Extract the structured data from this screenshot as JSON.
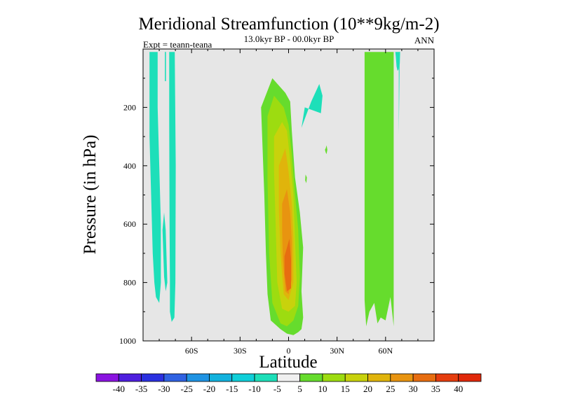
{
  "chart_data": {
    "type": "heatmap",
    "title": "Meridional Streamfunction (10**9kg/m-2)",
    "subtitle": "13.0kyr BP - 00.0kyr BP",
    "left_string": "Expt = teann-teana",
    "right_string": "ANN",
    "xlabel": "Latitude",
    "ylabel": "Pressure (in hPa)",
    "xlim": [
      -90,
      90
    ],
    "ylim": [
      1000,
      0
    ],
    "xticks": [
      {
        "value": -60,
        "label": "60S"
      },
      {
        "value": -30,
        "label": "30S"
      },
      {
        "value": 0,
        "label": "0"
      },
      {
        "value": 30,
        "label": "30N"
      },
      {
        "value": 60,
        "label": "60N"
      }
    ],
    "yticks": [
      {
        "value": 200,
        "label": "200"
      },
      {
        "value": 400,
        "label": "400"
      },
      {
        "value": 600,
        "label": "600"
      },
      {
        "value": 800,
        "label": "800"
      },
      {
        "value": 1000,
        "label": "1000"
      }
    ],
    "background_color": "#e6e6e6",
    "colorbar": {
      "levels": [
        -40,
        -35,
        -30,
        -25,
        -20,
        -15,
        -10,
        -5,
        5,
        10,
        15,
        20,
        25,
        30,
        35,
        40
      ],
      "colors": [
        "#8a13e0",
        "#4e1fde",
        "#2a30e0",
        "#2f62e2",
        "#1f93e3",
        "#12b2de",
        "#0fcfd9",
        "#1ddfb9",
        "#f0f0f0",
        "#66dc2d",
        "#9ddc10",
        "#c8d20c",
        "#e0b40c",
        "#e89410",
        "#e76d10",
        "#e53d0e",
        "#e0280a"
      ]
    },
    "regions": [
      {
        "name": "sh-polar-cell-a",
        "value": -10,
        "lat": [
          -86,
          -86,
          -85,
          -84,
          -83,
          -82,
          -80,
          -79,
          -79,
          -80,
          -81,
          -81
        ],
        "p": [
          10,
          300,
          500,
          700,
          800,
          850,
          870,
          800,
          600,
          400,
          200,
          10
        ]
      },
      {
        "name": "sh-polar-filament",
        "value": -10,
        "lat": [
          -76.5,
          -75.8,
          -75.8,
          -76.5
        ],
        "p": [
          10,
          10,
          110,
          110
        ]
      },
      {
        "name": "sh-polar-cell-b",
        "value": -10,
        "lat": [
          -78,
          -77,
          -76,
          -75,
          -76,
          -77
        ],
        "p": [
          620,
          560,
          620,
          800,
          830,
          780
        ]
      },
      {
        "name": "sh-polar-cell-c",
        "value": -10,
        "lat": [
          -73.8,
          -73.8,
          -73.6,
          -73.4,
          -73.4,
          -72.3,
          -70.6,
          -70.0,
          -69.8,
          -70.4
        ],
        "p": [
          10,
          250,
          600,
          800,
          900,
          935,
          920,
          800,
          400,
          10
        ]
      },
      {
        "name": "nh-mid-cell",
        "value": 5,
        "lat": [
          47,
          50,
          52,
          54,
          55,
          56,
          57,
          58,
          60,
          61,
          63,
          65,
          65,
          63,
          60,
          57,
          55,
          53,
          50,
          48,
          47
        ],
        "p": [
          10,
          10,
          10,
          10,
          10,
          10,
          10,
          10,
          10,
          10,
          10,
          10,
          950,
          850,
          930,
          920,
          940,
          870,
          900,
          950,
          860
        ]
      },
      {
        "name": "nh-high-cell",
        "value": -10,
        "lat": [
          66,
          69,
          68.8,
          68,
          67.4,
          66.8,
          66.3
        ],
        "p": [
          10,
          10,
          50,
          70,
          75,
          60,
          25
        ]
      },
      {
        "name": "nh-high-filament",
        "value": -10,
        "lat": [
          68.2,
          68.8,
          68.2
        ],
        "p": [
          10,
          10,
          290
        ]
      },
      {
        "name": "upper-sh-blob",
        "value": -10,
        "lat": [
          8,
          14,
          19,
          21,
          20,
          10,
          8
        ],
        "p": [
          270,
          180,
          120,
          160,
          220,
          200,
          270
        ]
      },
      {
        "name": "upper-nh-blob",
        "value": 5,
        "lat": [
          23,
          23.5,
          24,
          23.5,
          23,
          22.5
        ],
        "p": [
          340,
          330,
          345,
          360,
          355,
          345
        ]
      },
      {
        "name": "upper-nh-dot",
        "value": 5,
        "lat": [
          10.5,
          11.3,
          11,
          10.3
        ],
        "p": [
          430,
          440,
          460,
          450
        ]
      },
      {
        "name": "hadley-anomaly-5",
        "value": 5,
        "lat": [
          -17,
          -10,
          -2,
          1,
          2,
          4,
          7,
          9,
          8,
          9,
          8,
          6,
          3,
          -1,
          -5,
          -11,
          -13,
          -14,
          -15,
          -16,
          -17
        ],
        "p": [
          200,
          100,
          150,
          180,
          280,
          440,
          560,
          680,
          830,
          920,
          960,
          970,
          980,
          975,
          960,
          930,
          840,
          700,
          500,
          350,
          200
        ]
      },
      {
        "name": "hadley-anomaly-10",
        "value": 10,
        "lat": [
          -13,
          -9,
          -3,
          0,
          2,
          4,
          6,
          7,
          6,
          3,
          -1,
          -5,
          -10,
          -12,
          -13
        ],
        "p": [
          230,
          160,
          200,
          260,
          360,
          500,
          620,
          780,
          880,
          930,
          950,
          940,
          870,
          700,
          450
        ]
      },
      {
        "name": "hadley-anomaly-15",
        "value": 15,
        "lat": [
          -9,
          -4,
          -1,
          1,
          3,
          4,
          5,
          4,
          0,
          -4,
          -7,
          -8,
          -9
        ],
        "p": [
          300,
          250,
          280,
          380,
          500,
          650,
          800,
          880,
          900,
          890,
          800,
          600,
          420
        ]
      },
      {
        "name": "hadley-anomaly-20",
        "value": 20,
        "lat": [
          -6,
          -2,
          0,
          2,
          3,
          3,
          0,
          -3,
          -5,
          -6
        ],
        "p": [
          400,
          340,
          420,
          530,
          650,
          800,
          860,
          840,
          700,
          550
        ]
      },
      {
        "name": "hadley-anomaly-25",
        "value": 25,
        "lat": [
          -4,
          -1,
          1,
          2,
          2,
          0,
          -2,
          -3.5,
          -4
        ],
        "p": [
          530,
          480,
          560,
          660,
          790,
          840,
          830,
          720,
          620
        ]
      },
      {
        "name": "hadley-anomaly-30",
        "value": 30,
        "lat": [
          -2.5,
          0.5,
          1.5,
          1.5,
          -1,
          -2.5
        ],
        "p": [
          710,
          650,
          720,
          820,
          830,
          770
        ]
      }
    ]
  }
}
